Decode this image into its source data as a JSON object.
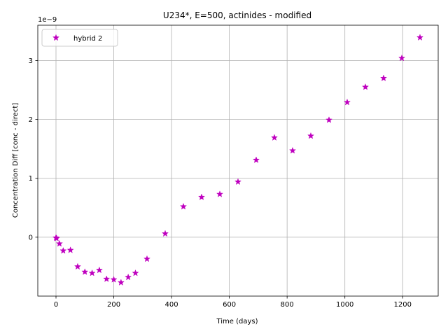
{
  "chart_data": {
    "type": "scatter",
    "title": "U234*, E=500, actinides - modified",
    "xlabel": "Time (days)",
    "ylabel": "Concentration Diff [conc - direct]",
    "y_offset_label": "1e−9",
    "xlim": [
      -63,
      1323
    ],
    "ylim": [
      -1.0,
      3.6
    ],
    "y_scale_note": "values shown in units of 1e-9",
    "xticks": [
      0,
      200,
      400,
      600,
      800,
      1000,
      1200
    ],
    "xtick_labels": [
      "0",
      "200",
      "400",
      "600",
      "800",
      "1000",
      "1200"
    ],
    "yticks": [
      0,
      1,
      2,
      3
    ],
    "ytick_labels": [
      "0",
      "1",
      "2",
      "3"
    ],
    "grid": true,
    "legend_position": "upper-left",
    "marker_color": "#bf00bf",
    "series": [
      {
        "name": "hybrid 2",
        "marker": "star",
        "points": [
          [
            0,
            -0.01
          ],
          [
            2,
            -0.02
          ],
          [
            12,
            -0.11
          ],
          [
            25,
            -0.23
          ],
          [
            50,
            -0.22
          ],
          [
            75,
            -0.5
          ],
          [
            100,
            -0.59
          ],
          [
            125,
            -0.61
          ],
          [
            150,
            -0.56
          ],
          [
            175,
            -0.71
          ],
          [
            200,
            -0.72
          ],
          [
            225,
            -0.77
          ],
          [
            250,
            -0.68
          ],
          [
            275,
            -0.61
          ],
          [
            315,
            -0.37
          ],
          [
            378,
            0.06
          ],
          [
            441,
            0.52
          ],
          [
            504,
            0.68
          ],
          [
            567,
            0.73
          ],
          [
            630,
            0.94
          ],
          [
            693,
            1.31
          ],
          [
            756,
            1.69
          ],
          [
            819,
            1.47
          ],
          [
            882,
            1.72
          ],
          [
            945,
            1.99
          ],
          [
            1008,
            2.29
          ],
          [
            1071,
            2.55
          ],
          [
            1134,
            2.7
          ],
          [
            1197,
            3.04
          ],
          [
            1260,
            3.39
          ]
        ]
      }
    ]
  }
}
